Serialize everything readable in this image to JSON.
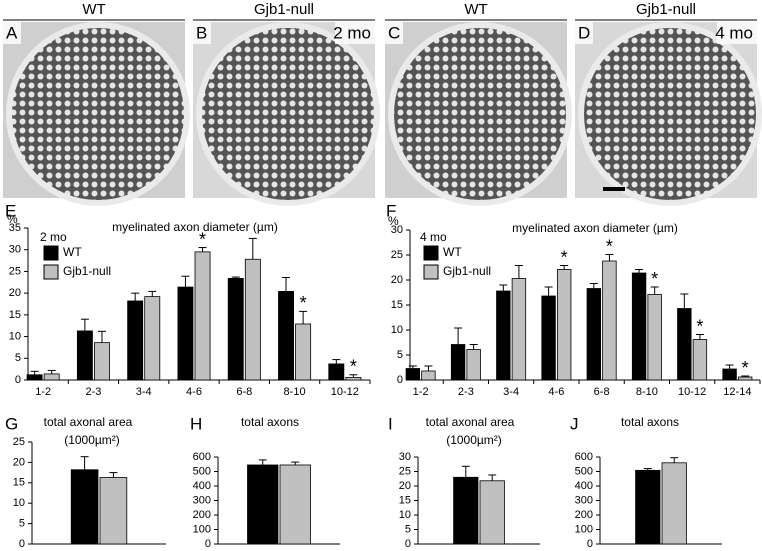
{
  "panels": [
    {
      "label": "A",
      "header": "WT"
    },
    {
      "label": "B",
      "header": "Gjb1-null",
      "annotation": "2 mo"
    },
    {
      "label": "C",
      "header": "WT"
    },
    {
      "label": "D",
      "header": "Gjb1-null",
      "annotation": "4 mo"
    }
  ],
  "chart_data": [
    {
      "type": "bar",
      "panel": "E",
      "y_label": "%",
      "title": "myelinated axon diameter (µm)",
      "annotation": "2 mo",
      "legend": true,
      "categories": [
        "1-2",
        "2-3",
        "3-4",
        "4-6",
        "6-8",
        "8-10",
        "10-12"
      ],
      "series": [
        {
          "name": "WT",
          "color": "#000000",
          "values": [
            1.2,
            11.3,
            18.2,
            21.4,
            23.4,
            20.4,
            3.7
          ],
          "errors": [
            0.8,
            2.7,
            1.8,
            2.5,
            0.3,
            3.2,
            1.0
          ]
        },
        {
          "name": "Gjb1-null",
          "color": "#c0c0c0",
          "values": [
            1.4,
            8.6,
            19.2,
            29.5,
            27.8,
            12.9,
            0.6
          ],
          "errors": [
            0.8,
            2.6,
            1.2,
            1.0,
            4.8,
            2.9,
            0.6
          ],
          "significant": [
            false,
            false,
            false,
            true,
            false,
            true,
            true
          ]
        }
      ],
      "significance_label": "*",
      "ylim": [
        0,
        35
      ],
      "yticks": [
        0,
        5,
        10,
        15,
        20,
        25,
        30,
        35
      ]
    },
    {
      "type": "bar",
      "panel": "F",
      "y_label": "%",
      "title": "myelinated axon diameter (µm)",
      "annotation": "4 mo",
      "legend": true,
      "categories": [
        "1-2",
        "2-3",
        "3-4",
        "4-6",
        "6-8",
        "8-10",
        "10-12",
        "12-14"
      ],
      "series": [
        {
          "name": "WT",
          "color": "#000000",
          "values": [
            2.3,
            7.1,
            17.8,
            16.8,
            18.3,
            21.4,
            14.3,
            2.2
          ],
          "errors": [
            0.5,
            3.3,
            1.2,
            1.8,
            1.0,
            0.7,
            2.9,
            0.8
          ]
        },
        {
          "name": "Gjb1-null",
          "color": "#c0c0c0",
          "values": [
            1.8,
            6.1,
            20.3,
            22.1,
            23.8,
            17.1,
            8.1,
            0.6
          ],
          "errors": [
            1.0,
            1.0,
            2.6,
            0.8,
            1.3,
            1.5,
            1.0,
            0.2
          ],
          "significant": [
            false,
            false,
            false,
            true,
            true,
            true,
            true,
            true
          ]
        }
      ],
      "significance_label": "*",
      "ylim": [
        0,
        30
      ],
      "yticks": [
        0,
        5,
        10,
        15,
        20,
        25,
        30
      ]
    },
    {
      "type": "bar",
      "panel": "G",
      "title": "total axonal area",
      "subtitle": "(1000µm²)",
      "series": [
        {
          "color": "#000000",
          "values": [
            18.2
          ],
          "errors": [
            3.2
          ]
        },
        {
          "color": "#c0c0c0",
          "values": [
            16.3
          ],
          "errors": [
            1.2
          ]
        }
      ],
      "ylim": [
        0,
        25
      ],
      "yticks": [
        0,
        5,
        10,
        15,
        20,
        25
      ]
    },
    {
      "type": "bar",
      "panel": "H",
      "title": "total axons",
      "series": [
        {
          "color": "#000000",
          "values": [
            545
          ],
          "errors": [
            35
          ]
        },
        {
          "color": "#c0c0c0",
          "values": [
            545
          ],
          "errors": [
            20
          ]
        }
      ],
      "ylim": [
        0,
        600
      ],
      "yticks": [
        0,
        100,
        200,
        300,
        400,
        500,
        600
      ]
    },
    {
      "type": "bar",
      "panel": "I",
      "title": "total axonal area",
      "subtitle": "(1000µm²)",
      "series": [
        {
          "color": "#000000",
          "values": [
            23.0
          ],
          "errors": [
            3.8
          ]
        },
        {
          "color": "#c0c0c0",
          "values": [
            21.8
          ],
          "errors": [
            2.0
          ]
        }
      ],
      "ylim": [
        0,
        30
      ],
      "yticks": [
        0,
        5,
        10,
        15,
        20,
        25,
        30
      ]
    },
    {
      "type": "bar",
      "panel": "J",
      "title": "total axons",
      "series": [
        {
          "color": "#000000",
          "values": [
            508
          ],
          "errors": [
            12
          ]
        },
        {
          "color": "#c0c0c0",
          "values": [
            560
          ],
          "errors": [
            35
          ]
        }
      ],
      "ylim": [
        0,
        600
      ],
      "yticks": [
        0,
        100,
        200,
        300,
        400,
        500,
        600
      ]
    }
  ]
}
